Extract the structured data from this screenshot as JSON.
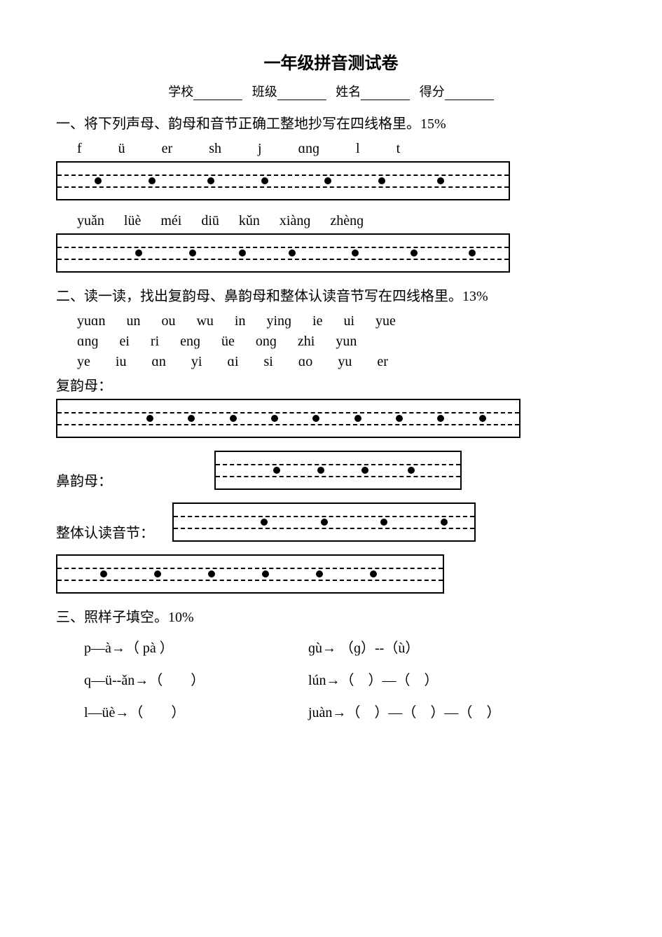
{
  "title": "一年级拼音测试卷",
  "header": {
    "school_label": "学校",
    "class_label": "班级",
    "name_label": "姓名",
    "score_label": "得分"
  },
  "q1": {
    "heading": "一、将下列声母、韵母和音节正确工整地抄写在四线格里。15%",
    "row1": [
      "f",
      "ü",
      "er",
      "sh",
      "j",
      "ɑnɡ",
      "l",
      "t"
    ],
    "row2": [
      "yuǎn",
      "lüè",
      "méi",
      "diū",
      "kǔn",
      "xiànɡ",
      "zhènɡ"
    ],
    "grid1": {
      "width_pct": 82,
      "dots_pct": [
        9,
        21,
        34,
        46,
        60,
        72,
        85
      ]
    },
    "grid2": {
      "width_pct": 82,
      "dots_pct": [
        18,
        30,
        41,
        52,
        66,
        79,
        92
      ]
    }
  },
  "q2": {
    "heading": "二、读一读，找出复韵母、鼻韵母和整体认读音节写在四线格里。13%",
    "row1": [
      "yuɑn",
      "un",
      "ou",
      "wu",
      "in",
      "yinɡ",
      "ie",
      "ui",
      "yue"
    ],
    "row2": [
      "ɑnɡ",
      "ei",
      "ri",
      "enɡ",
      "üe",
      "onɡ",
      "zhi",
      "yun"
    ],
    "row3": [
      "ye",
      "iu",
      "ɑn",
      "yi",
      "ɑi",
      "si",
      "ɑo",
      "yu",
      "er"
    ],
    "label_fu": "复韵母：",
    "label_bi": "鼻韵母：",
    "label_zheng": "整体认读音节：",
    "grid_fu": {
      "width_pct": 84,
      "left_pct": 0,
      "dots_pct": [
        20,
        29,
        38,
        47,
        56,
        65,
        74,
        83,
        92
      ]
    },
    "grid_bi": {
      "width_pct": 54,
      "left_pct": 14,
      "dots_pct": [
        25,
        43,
        61,
        80
      ]
    },
    "grid_zheng1": {
      "width_pct": 54,
      "left_pct": 0,
      "dots_pct": [
        30,
        50,
        70,
        90
      ]
    },
    "grid_zheng2": {
      "width_pct": 70,
      "left_pct": 0,
      "dots_pct": [
        12,
        26,
        40,
        54,
        68,
        82
      ]
    }
  },
  "q3": {
    "heading": "三、照样子填空。10%",
    "rows": [
      {
        "left": "p—à→（ pà ）",
        "right": "ɡù→ （ɡ）--（ù）"
      },
      {
        "left": "q—ü--ǎn→（　　）",
        "right": "lún→（　）—（　）"
      },
      {
        "left": "l—üè→（　　）",
        "right": "juàn→（　）—（　）—（　）"
      }
    ]
  },
  "style": {
    "line1_pct": 33,
    "line2_pct": 66
  }
}
